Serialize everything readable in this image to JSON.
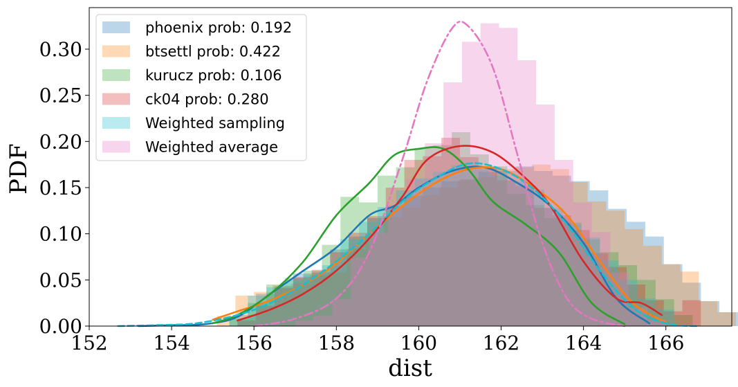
{
  "chart_data": {
    "type": "bar",
    "title": "",
    "xlabel": "dist",
    "ylabel": "PDF",
    "xlim": [
      152.0,
      167.6
    ],
    "ylim": [
      0.0,
      0.345
    ],
    "xticks": [
      152,
      154,
      156,
      158,
      160,
      162,
      164,
      166
    ],
    "xtick_labels": [
      "152",
      "154",
      "156",
      "158",
      "160",
      "162",
      "164",
      "166"
    ],
    "yticks": [
      0.0,
      0.05,
      0.1,
      0.15,
      0.2,
      0.25,
      0.3
    ],
    "ytick_labels": [
      "0.00",
      "0.05",
      "0.10",
      "0.15",
      "0.20",
      "0.25",
      "0.30"
    ],
    "grid": false,
    "legend_position": "upper-left",
    "bin_width": 0.45,
    "series": [
      {
        "name": "phoenix prob: 0.192",
        "color": "#1f77b4",
        "hist_start": 155.6,
        "hist": [
          0.012,
          0.035,
          0.043,
          0.057,
          0.058,
          0.083,
          0.097,
          0.117,
          0.13,
          0.141,
          0.15,
          0.157,
          0.159,
          0.167,
          0.168,
          0.173,
          0.168,
          0.163,
          0.157,
          0.147,
          0.127,
          0.113,
          0.097,
          0.067,
          0.047,
          0.027,
          0.015
        ],
        "kde_x": [
          153.2,
          154.0,
          154.8,
          155.6,
          156.4,
          157.2,
          158.0,
          158.8,
          159.4,
          160.0,
          160.8,
          161.6,
          162.4,
          163.2,
          164.0,
          164.8,
          165.6
        ],
        "kde_y": [
          0.0,
          0.001,
          0.002,
          0.01,
          0.035,
          0.06,
          0.085,
          0.12,
          0.13,
          0.15,
          0.168,
          0.172,
          0.155,
          0.13,
          0.09,
          0.03,
          0.003
        ]
      },
      {
        "name": "btsettl prob: 0.422",
        "color": "#ff7f0e",
        "hist_start": 155.1,
        "hist": [
          0.011,
          0.033,
          0.037,
          0.044,
          0.046,
          0.055,
          0.058,
          0.084,
          0.1,
          0.118,
          0.128,
          0.142,
          0.15,
          0.158,
          0.161,
          0.17,
          0.172,
          0.175,
          0.17,
          0.156,
          0.135,
          0.125,
          0.105,
          0.087,
          0.067,
          0.059,
          0.027,
          0.015
        ],
        "kde_x": [
          155.0,
          155.6,
          156.4,
          157.2,
          158.0,
          158.8,
          159.6,
          160.4,
          161.2,
          162.0,
          162.8,
          163.6,
          164.4,
          165.2,
          166.0
        ],
        "kde_y": [
          0.007,
          0.016,
          0.028,
          0.045,
          0.068,
          0.1,
          0.13,
          0.155,
          0.17,
          0.17,
          0.15,
          0.12,
          0.07,
          0.025,
          0.004
        ]
      },
      {
        "name": "kurucz prob: 0.106",
        "color": "#2ca02c",
        "hist_start": 155.4,
        "hist": [
          0.008,
          0.025,
          0.045,
          0.052,
          0.06,
          0.088,
          0.14,
          0.134,
          0.163,
          0.172,
          0.193,
          0.196,
          0.21,
          0.186,
          0.173,
          0.143,
          0.131,
          0.117,
          0.112,
          0.094,
          0.08,
          0.066,
          0.05,
          0.029,
          0.012
        ],
        "kde_x": [
          155.0,
          155.6,
          156.4,
          157.2,
          158.0,
          158.8,
          159.4,
          160.0,
          160.6,
          161.2,
          161.8,
          162.6,
          163.4,
          164.2,
          165.0
        ],
        "kde_y": [
          0.003,
          0.012,
          0.035,
          0.07,
          0.12,
          0.155,
          0.185,
          0.192,
          0.192,
          0.17,
          0.135,
          0.11,
          0.08,
          0.025,
          0.002
        ]
      },
      {
        "name": "ck04 prob: 0.280",
        "color": "#d62728",
        "hist_start": 155.6,
        "hist": [
          0.006,
          0.022,
          0.041,
          0.053,
          0.061,
          0.08,
          0.101,
          0.119,
          0.15,
          0.18,
          0.184,
          0.204,
          0.183,
          0.171,
          0.158,
          0.152,
          0.128,
          0.12,
          0.104,
          0.079,
          0.064,
          0.045,
          0.028,
          0.016,
          0.028
        ],
        "kde_x": [
          155.6,
          156.4,
          157.2,
          158.0,
          158.8,
          159.6,
          160.2,
          161.0,
          161.8,
          162.6,
          163.2,
          164.0,
          164.8,
          165.4,
          165.9
        ],
        "kde_y": [
          0.006,
          0.018,
          0.035,
          0.06,
          0.095,
          0.14,
          0.18,
          0.195,
          0.188,
          0.16,
          0.13,
          0.07,
          0.03,
          0.025,
          0.012
        ]
      },
      {
        "name": "Weighted sampling",
        "color": "#17becf",
        "hist_start": 155.4,
        "hist": [
          0.008,
          0.033,
          0.042,
          0.05,
          0.055,
          0.066,
          0.094,
          0.113,
          0.129,
          0.147,
          0.16,
          0.167,
          0.174,
          0.17,
          0.163,
          0.157,
          0.148,
          0.128,
          0.11,
          0.096,
          0.071,
          0.05,
          0.03,
          0.018
        ],
        "kde_x": [
          152.7,
          153.6,
          154.6,
          155.6,
          156.4,
          157.2,
          158.0,
          158.8,
          159.6,
          160.4,
          161.2,
          162.0,
          162.8,
          163.6,
          164.4,
          165.2,
          166.0,
          166.8
        ],
        "kde_y": [
          0.0,
          0.001,
          0.003,
          0.012,
          0.025,
          0.045,
          0.07,
          0.1,
          0.135,
          0.16,
          0.176,
          0.17,
          0.148,
          0.11,
          0.06,
          0.02,
          0.003,
          0.0
        ]
      },
      {
        "name": "Weighted average",
        "color": "#e377c2",
        "hist_start": 157.0,
        "hist": [
          0.006,
          0.011,
          0.029,
          0.074,
          0.101,
          0.131,
          0.159,
          0.198,
          0.264,
          0.308,
          0.328,
          0.323,
          0.288,
          0.24,
          0.18,
          0.134,
          0.102,
          0.058,
          0.02,
          0.007
        ],
        "kde_x": [
          156.0,
          157.0,
          158.0,
          158.8,
          159.6,
          160.2,
          160.8,
          161.2,
          161.8,
          162.4,
          163.0,
          163.6,
          164.2,
          165.0
        ],
        "kde_y": [
          0.0,
          0.008,
          0.03,
          0.08,
          0.18,
          0.265,
          0.322,
          0.325,
          0.28,
          0.185,
          0.09,
          0.03,
          0.008,
          0.0
        ],
        "kde_dashed": true
      }
    ]
  }
}
